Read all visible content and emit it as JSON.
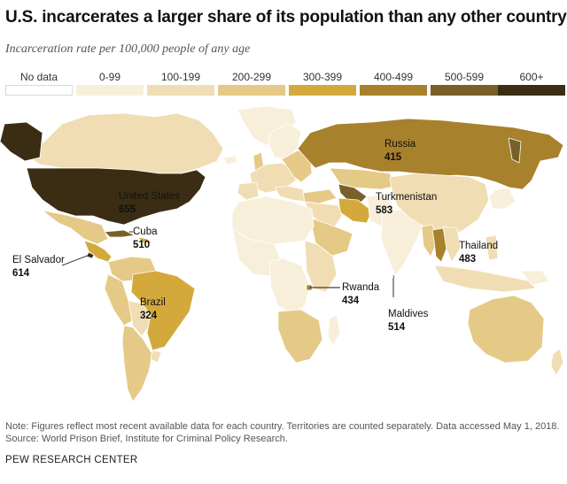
{
  "title": "U.S. incarcerates a larger share of its population than any other country",
  "subtitle": "Incarceration rate per 100,000 people of any age",
  "legend": [
    {
      "label": "No data",
      "color": "#ffffff"
    },
    {
      "label": "0-99",
      "color": "#f8efdb"
    },
    {
      "label": "100-199",
      "color": "#f0ddb3"
    },
    {
      "label": "200-299",
      "color": "#e5c987"
    },
    {
      "label": "300-399",
      "color": "#d4a93c"
    },
    {
      "label": "400-499",
      "color": "#a8812c"
    },
    {
      "label": "500-599",
      "color": "#78602a"
    },
    {
      "label": "600+",
      "color": "#3b2d14"
    }
  ],
  "annotations": {
    "united_states": {
      "name": "United States",
      "value": "655"
    },
    "cuba": {
      "name": "Cuba",
      "value": "510"
    },
    "el_salvador": {
      "name": "El Salvador",
      "value": "614"
    },
    "brazil": {
      "name": "Brazil",
      "value": "324"
    },
    "russia": {
      "name": "Russia",
      "value": "415"
    },
    "turkmenistan": {
      "name": "Turkmenistan",
      "value": "583"
    },
    "thailand": {
      "name": "Thailand",
      "value": "483"
    },
    "rwanda": {
      "name": "Rwanda",
      "value": "434"
    },
    "maldives": {
      "name": "Maldives",
      "value": "514"
    }
  },
  "note": "Note: Figures reflect most recent available data for each country. Territories are counted separately. Data accessed May 1, 2018.",
  "source": "Source: World Prison Brief, Institute for Criminal Policy Research.",
  "footer": "PEW RESEARCH CENTER"
}
